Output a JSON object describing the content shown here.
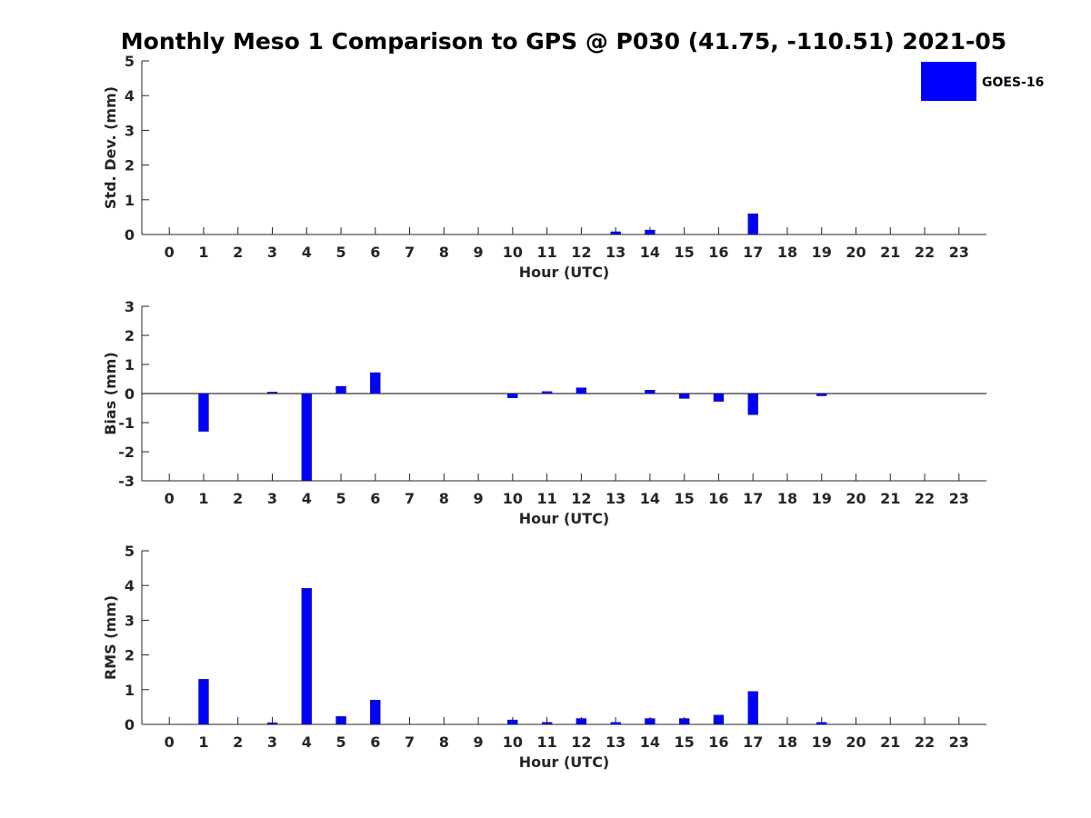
{
  "title": "Monthly Meso 1 Comparison to GPS @ P030 (41.75, -110.51) 2021-05",
  "legend": {
    "label": "GOES-16",
    "color": "#0000ff",
    "placement": "top-right"
  },
  "chart_data": [
    {
      "type": "bar",
      "name": "std",
      "title": "",
      "xlabel": "Hour (UTC)",
      "ylabel": "Std. Dev. (mm)",
      "ylim": [
        0,
        5
      ],
      "yticks": [
        0,
        1,
        2,
        3,
        4,
        5
      ],
      "xlim": [
        -0.8,
        23.8
      ],
      "grid": false,
      "categories": [
        0,
        1,
        2,
        3,
        4,
        5,
        6,
        7,
        8,
        9,
        10,
        11,
        12,
        13,
        14,
        15,
        16,
        17,
        18,
        19,
        20,
        21,
        22,
        23
      ],
      "series": [
        {
          "name": "GOES-16",
          "color": "#0000ff",
          "values": [
            null,
            null,
            null,
            null,
            null,
            null,
            null,
            null,
            null,
            null,
            null,
            null,
            null,
            0.08,
            0.13,
            null,
            null,
            0.6,
            null,
            null,
            null,
            null,
            null,
            null
          ]
        }
      ]
    },
    {
      "type": "bar",
      "name": "bias",
      "title": "",
      "xlabel": "Hour (UTC)",
      "ylabel": "Bias (mm)",
      "ylim": [
        -3,
        3
      ],
      "yticks": [
        -3,
        -2,
        -1,
        0,
        1,
        2,
        3
      ],
      "xlim": [
        -0.8,
        23.8
      ],
      "grid": false,
      "zero_line": true,
      "categories": [
        0,
        1,
        2,
        3,
        4,
        5,
        6,
        7,
        8,
        9,
        10,
        11,
        12,
        13,
        14,
        15,
        16,
        17,
        18,
        19,
        20,
        21,
        22,
        23
      ],
      "series": [
        {
          "name": "GOES-16",
          "color": "#0000ff",
          "values": [
            null,
            -1.3,
            null,
            0.05,
            -3.0,
            0.25,
            0.72,
            null,
            null,
            null,
            -0.15,
            0.07,
            0.2,
            null,
            0.12,
            -0.17,
            -0.27,
            -0.73,
            null,
            -0.08,
            null,
            null,
            null,
            null
          ]
        }
      ]
    },
    {
      "type": "bar",
      "name": "rms",
      "title": "",
      "xlabel": "Hour (UTC)",
      "ylabel": "RMS (mm)",
      "ylim": [
        0,
        5
      ],
      "yticks": [
        0,
        1,
        2,
        3,
        4,
        5
      ],
      "xlim": [
        -0.8,
        23.8
      ],
      "grid": false,
      "categories": [
        0,
        1,
        2,
        3,
        4,
        5,
        6,
        7,
        8,
        9,
        10,
        11,
        12,
        13,
        14,
        15,
        16,
        17,
        18,
        19,
        20,
        21,
        22,
        23
      ],
      "series": [
        {
          "name": "GOES-16",
          "color": "#0000ff",
          "values": [
            null,
            1.3,
            null,
            0.05,
            3.92,
            0.23,
            0.7,
            null,
            null,
            null,
            0.13,
            0.06,
            0.17,
            0.06,
            0.17,
            0.17,
            0.27,
            0.95,
            null,
            0.06,
            null,
            null,
            null,
            null
          ]
        }
      ]
    }
  ]
}
